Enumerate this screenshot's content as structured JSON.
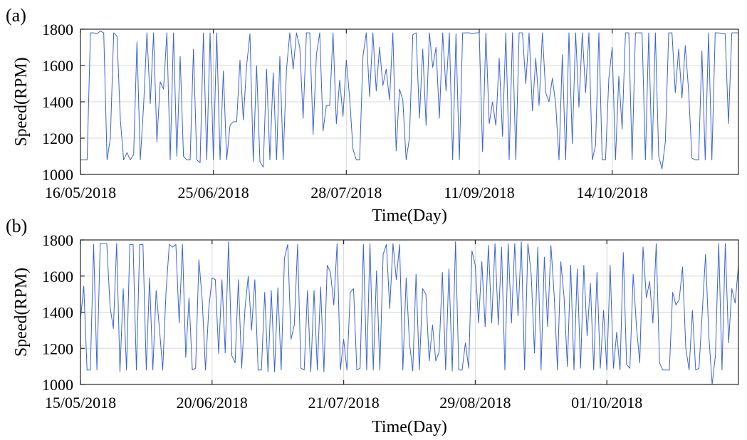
{
  "chart_data": [
    {
      "type": "line",
      "panel_label": "(a)",
      "xlabel": "Time(Day)",
      "ylabel": "Speed(RPM)",
      "ylim": [
        1000,
        1800
      ],
      "y_ticks": [
        1000,
        1200,
        1400,
        1600,
        1800
      ],
      "x_ticks": [
        "16/05/2018",
        "25/06/2018",
        "28/07/2018",
        "11/09/2018",
        "14/10/2018"
      ],
      "x_tick_indices": [
        0,
        40,
        80,
        120,
        160
      ],
      "grid": true,
      "color": "#3a62d8",
      "series": [
        {
          "values": [
            1080,
            1080,
            1080,
            1780,
            1780,
            1775,
            1790,
            1780,
            1080,
            1200,
            1780,
            1760,
            1300,
            1080,
            1120,
            1080,
            1110,
            1730,
            1080,
            1380,
            1780,
            1390,
            1780,
            1180,
            1510,
            1470,
            1780,
            1080,
            1780,
            1100,
            1650,
            1100,
            1080,
            1080,
            1690,
            1080,
            1065,
            1780,
            1080,
            1780,
            1080,
            1780,
            1080,
            1570,
            1080,
            1270,
            1290,
            1290,
            1630,
            1300,
            1600,
            1775,
            1070,
            1600,
            1070,
            1040,
            1580,
            1080,
            1560,
            1080,
            1650,
            1080,
            1580,
            1780,
            1580,
            1780,
            1700,
            1310,
            1780,
            1780,
            1220,
            1660,
            1780,
            1240,
            1380,
            1380,
            1780,
            1280,
            1520,
            1320,
            1630,
            1420,
            1140,
            1080,
            1080,
            1650,
            1780,
            1430,
            1780,
            1460,
            1700,
            1490,
            1580,
            1410,
            1780,
            1130,
            1470,
            1410,
            1080,
            1200,
            1770,
            1780,
            1310,
            1690,
            1270,
            1780,
            1590,
            1700,
            1310,
            1780,
            1460,
            1780,
            1080,
            1775,
            1080,
            1780,
            1780,
            1780,
            1775,
            1780,
            1780,
            1125,
            1780,
            1280,
            1400,
            1270,
            1640,
            1210,
            1780,
            1080,
            1780,
            1080,
            1780,
            1780,
            1500,
            1780,
            1350,
            1640,
            1380,
            1780,
            1450,
            1400,
            1530,
            1390,
            1080,
            1660,
            1080,
            1780,
            1170,
            1780,
            1370,
            1780,
            1450,
            1780,
            1080,
            1160,
            1780,
            1080,
            1080,
            1530,
            1700,
            1080,
            1540,
            1250,
            1780,
            1780,
            1080,
            1780,
            1780,
            1780,
            1080,
            1780,
            1080,
            1780,
            1100,
            1030,
            1180,
            1780,
            1780,
            1450,
            1690,
            1420,
            1710,
            1460,
            1090,
            1080,
            1080,
            1680,
            1080,
            1780,
            1080,
            1780,
            1780,
            1775,
            1775,
            1280,
            1780,
            1780,
            1780
          ]
        }
      ]
    },
    {
      "type": "line",
      "panel_label": "(b)",
      "xlabel": "Time(Day)",
      "ylabel": "Speed(RPM)",
      "ylim": [
        1000,
        1800
      ],
      "y_ticks": [
        1000,
        1200,
        1400,
        1600,
        1800
      ],
      "x_ticks": [
        "15/05/2018",
        "20/06/2018",
        "21/07/2018",
        "29/08/2018",
        "01/10/2018"
      ],
      "x_tick_indices": [
        0,
        40,
        80,
        120,
        160
      ],
      "grid": true,
      "color": "#3a62d8",
      "series": [
        {
          "values": [
            1360,
            1545,
            1080,
            1080,
            1775,
            1080,
            1780,
            1780,
            1780,
            1430,
            1310,
            1780,
            1070,
            1530,
            1080,
            1775,
            1775,
            1080,
            1775,
            1775,
            1080,
            1590,
            1080,
            1520,
            1310,
            1080,
            1510,
            1775,
            1760,
            1775,
            1340,
            1775,
            1150,
            1480,
            1080,
            1090,
            1690,
            1470,
            1080,
            1420,
            1590,
            1580,
            1170,
            1580,
            1175,
            1790,
            1160,
            1120,
            1580,
            1090,
            1420,
            1600,
            1300,
            1580,
            1080,
            1080,
            1510,
            1070,
            1520,
            1070,
            1535,
            1080,
            1700,
            1775,
            1250,
            1330,
            1775,
            1090,
            1080,
            1520,
            1070,
            1520,
            1080,
            1540,
            1070,
            1660,
            1620,
            1440,
            1780,
            1080,
            1250,
            1080,
            1510,
            1530,
            1080,
            1090,
            1775,
            1080,
            1780,
            1080,
            1630,
            1080,
            1720,
            1775,
            1420,
            1780,
            1580,
            1775,
            1080,
            1590,
            1230,
            1075,
            1610,
            1080,
            1530,
            1500,
            1130,
            1330,
            1130,
            1180,
            1620,
            1080,
            1640,
            1075,
            1790,
            1080,
            1080,
            1230,
            1090,
            1740,
            1660,
            1340,
            1680,
            1320,
            1770,
            1340,
            1780,
            1330,
            1760,
            1080,
            1780,
            1340,
            1780,
            1380,
            1790,
            1080,
            1780,
            1610,
            1175,
            1760,
            1080,
            1705,
            1320,
            1770,
            1490,
            1080,
            1680,
            1480,
            1100,
            1660,
            1080,
            1640,
            1090,
            1660,
            1270,
            1560,
            1080,
            1620,
            1090,
            1410,
            1080,
            1660,
            1090,
            1290,
            1080,
            1730,
            1110,
            1090,
            1610,
            1320,
            1120,
            1760,
            1480,
            1570,
            1340,
            1780,
            1120,
            1080,
            1080,
            1080,
            1510,
            1440,
            1470,
            1650,
            1200,
            1080,
            1410,
            1080,
            1090,
            1400,
            1720,
            1270,
            1000,
            1160,
            1780,
            1080,
            1780,
            1230,
            1530,
            1450,
            1660
          ]
        }
      ]
    }
  ]
}
